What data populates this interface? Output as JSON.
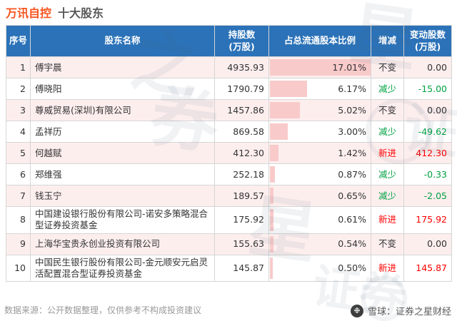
{
  "title": {
    "stock": "万讯自控",
    "label": "十大股东"
  },
  "colors": {
    "title": "#f8541e",
    "header_bg": "#2b72b8",
    "stripe": "#fdeeee",
    "bar": "#f8caca",
    "neutral": "#333333",
    "down_green": "#00a243",
    "up_red": "#ff0000"
  },
  "table": {
    "headers": {
      "no": "序号",
      "name": "股东名称",
      "shares_line1": "持股数",
      "shares_line2": "(万股)",
      "ratio": "占总流通股本比例",
      "change": "增减",
      "delta_line1": "变动股数",
      "delta_line2": "(万股)"
    },
    "ratio_max": 17.01,
    "rows": [
      {
        "no": "1",
        "name": "傅宇晨",
        "shares": "4935.93",
        "ratio": "17.01%",
        "ratio_value": 17.01,
        "change_label": "不变",
        "delta": "0.00",
        "trend_color": "#333333"
      },
      {
        "no": "2",
        "name": "傅晓阳",
        "shares": "1790.79",
        "ratio": "6.17%",
        "ratio_value": 6.17,
        "change_label": "减少",
        "delta": "-15.00",
        "trend_color": "#00a243"
      },
      {
        "no": "3",
        "name": "尊威贸易(深圳)有限公司",
        "shares": "1457.86",
        "ratio": "5.02%",
        "ratio_value": 5.02,
        "change_label": "不变",
        "delta": "0.00",
        "trend_color": "#333333"
      },
      {
        "no": "4",
        "name": "孟祥历",
        "shares": "869.58",
        "ratio": "3.00%",
        "ratio_value": 3.0,
        "change_label": "减少",
        "delta": "-49.62",
        "trend_color": "#00a243"
      },
      {
        "no": "5",
        "name": "何越赋",
        "shares": "412.30",
        "ratio": "1.42%",
        "ratio_value": 1.42,
        "change_label": "新进",
        "delta": "412.30",
        "trend_color": "#ff0000"
      },
      {
        "no": "6",
        "name": "郑维强",
        "shares": "252.18",
        "ratio": "0.87%",
        "ratio_value": 0.87,
        "change_label": "减少",
        "delta": "-0.33",
        "trend_color": "#00a243"
      },
      {
        "no": "7",
        "name": "钱玉宁",
        "shares": "189.57",
        "ratio": "0.65%",
        "ratio_value": 0.65,
        "change_label": "减少",
        "delta": "-2.05",
        "trend_color": "#00a243"
      },
      {
        "no": "8",
        "name": "中国建设银行股份有限公司-诺安多策略混合型证券投资基金",
        "shares": "175.92",
        "ratio": "0.61%",
        "ratio_value": 0.61,
        "change_label": "新进",
        "delta": "175.92",
        "trend_color": "#ff0000"
      },
      {
        "no": "9",
        "name": "上海华宝贵永创业投资有限公司",
        "shares": "155.63",
        "ratio": "0.54%",
        "ratio_value": 0.54,
        "change_label": "不变",
        "delta": "0.00",
        "trend_color": "#333333"
      },
      {
        "no": "10",
        "name": "中国民生银行股份有限公司-金元顺安元启灵活配置混合型证券投资基金",
        "shares": "145.87",
        "ratio": "0.50%",
        "ratio_value": 0.5,
        "change_label": "新进",
        "delta": "145.87",
        "trend_color": "#ff0000"
      }
    ]
  },
  "footer": {
    "source": "数据来源：公开数据整理，仅供参考不构成投资建议",
    "brand": "雪球：证券之星财经",
    "brand_logo_glyph": "❉"
  },
  "watermark": {
    "chars": [
      "之",
      "星",
      "券",
      "证",
      "星",
      "证券"
    ]
  },
  "chart_data": {
    "type": "bar",
    "title": "万讯自控 十大股东 占总流通股本比例",
    "categories": [
      "傅宇晨",
      "傅晓阳",
      "尊威贸易(深圳)有限公司",
      "孟祥历",
      "何越赋",
      "郑维强",
      "钱玉宁",
      "中国建设银行股份有限公司-诺安多策略混合型证券投资基金",
      "上海华宝贵永创业投资有限公司",
      "中国民生银行股份有限公司-金元顺安元启灵活配置混合型证券投资基金"
    ],
    "series": [
      {
        "name": "持股数(万股)",
        "values": [
          4935.93,
          1790.79,
          1457.86,
          869.58,
          412.3,
          252.18,
          189.57,
          175.92,
          155.63,
          145.87
        ]
      },
      {
        "name": "占总流通股本比例(%)",
        "values": [
          17.01,
          6.17,
          5.02,
          3.0,
          1.42,
          0.87,
          0.65,
          0.61,
          0.54,
          0.5
        ]
      },
      {
        "name": "变动股数(万股)",
        "values": [
          0.0,
          -15.0,
          0.0,
          -49.62,
          412.3,
          -0.33,
          -2.05,
          175.92,
          0.0,
          145.87
        ]
      }
    ],
    "xlabel": "股东名称",
    "ylabel": "占总流通股本比例",
    "ylim": [
      0,
      17.01
    ],
    "grid": false,
    "legend_position": "none"
  }
}
